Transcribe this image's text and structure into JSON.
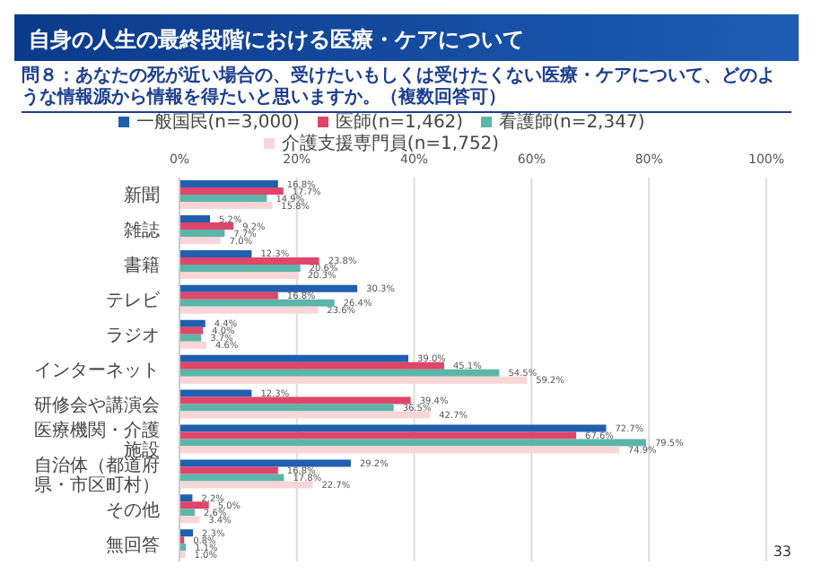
{
  "chart_data": {
    "type": "bar",
    "orientation": "horizontal",
    "title": "自身の人生の最終段階における医療・ケアについて",
    "subtitle": "問８：あなたの死が近い場合の、受けたいもしくは受けたくない医療・ケアについて、どのような情報源から情報を得たいと思いますか。（複数回答可）",
    "categories": [
      "新聞",
      "雑誌",
      "書籍",
      "テレビ",
      "ラジオ",
      "インターネット",
      "研修会や講演会",
      "医療機関・介護施設",
      "自治体（都道府県・市区町村）",
      "その他",
      "無回答"
    ],
    "series": [
      {
        "name": "一般国民(n=3,000)",
        "color": "#1f5fae",
        "values": [
          16.8,
          5.2,
          12.3,
          30.3,
          4.4,
          39.0,
          12.3,
          72.7,
          29.2,
          2.2,
          2.3
        ],
        "value_labels": [
          "16.8%",
          "5.2%",
          "12.3%",
          "30.3%",
          "4.4%",
          "39.0%",
          "12.3%",
          "72.7%",
          "29.2%",
          "2.2%",
          "2.3%"
        ]
      },
      {
        "name": "医師(n=1,462)",
        "color": "#e0456a",
        "values": [
          17.7,
          9.2,
          23.8,
          16.8,
          4.0,
          45.1,
          39.4,
          67.6,
          16.8,
          5.0,
          0.8
        ],
        "value_labels": [
          "17.7%",
          "9.2%",
          "23.8%",
          "16.8%",
          "4.0%",
          "45.1%",
          "39.4%",
          "67.6%",
          "16.8%",
          "5.0%",
          "0.8%"
        ]
      },
      {
        "name": "看護師(n=2,347)",
        "color": "#5bb5a8",
        "values": [
          14.9,
          7.7,
          20.6,
          26.4,
          3.7,
          54.5,
          36.5,
          79.5,
          17.8,
          2.6,
          1.1
        ],
        "value_labels": [
          "14.9%",
          "7.7%",
          "20.6%",
          "26.4%",
          "3.7%",
          "54.5%",
          "36.5%",
          "79.5%",
          "17.8%",
          "2.6%",
          "1.1%"
        ]
      },
      {
        "name": "介護支援専門員(n=1,752)",
        "color": "#f9d5d8",
        "values": [
          15.8,
          7.0,
          20.3,
          23.6,
          4.6,
          59.2,
          42.7,
          74.9,
          22.7,
          3.4,
          1.0
        ],
        "value_labels": [
          "15.8%",
          "7.0%",
          "20.3%",
          "23.6%",
          "4.6%",
          "59.2%",
          "42.7%",
          "74.9%",
          "22.7%",
          "3.4%",
          "1.0%"
        ]
      }
    ],
    "xlim": [
      0,
      100
    ],
    "xticks": [
      {
        "value": 0,
        "label": "0%"
      },
      {
        "value": 20,
        "label": "20%"
      },
      {
        "value": 40,
        "label": "40%"
      },
      {
        "value": 60,
        "label": "60%"
      },
      {
        "value": 80,
        "label": "80%"
      },
      {
        "value": 100,
        "label": "100%"
      }
    ],
    "grid": "x",
    "legend": "top",
    "annotations": [
      "33"
    ]
  }
}
